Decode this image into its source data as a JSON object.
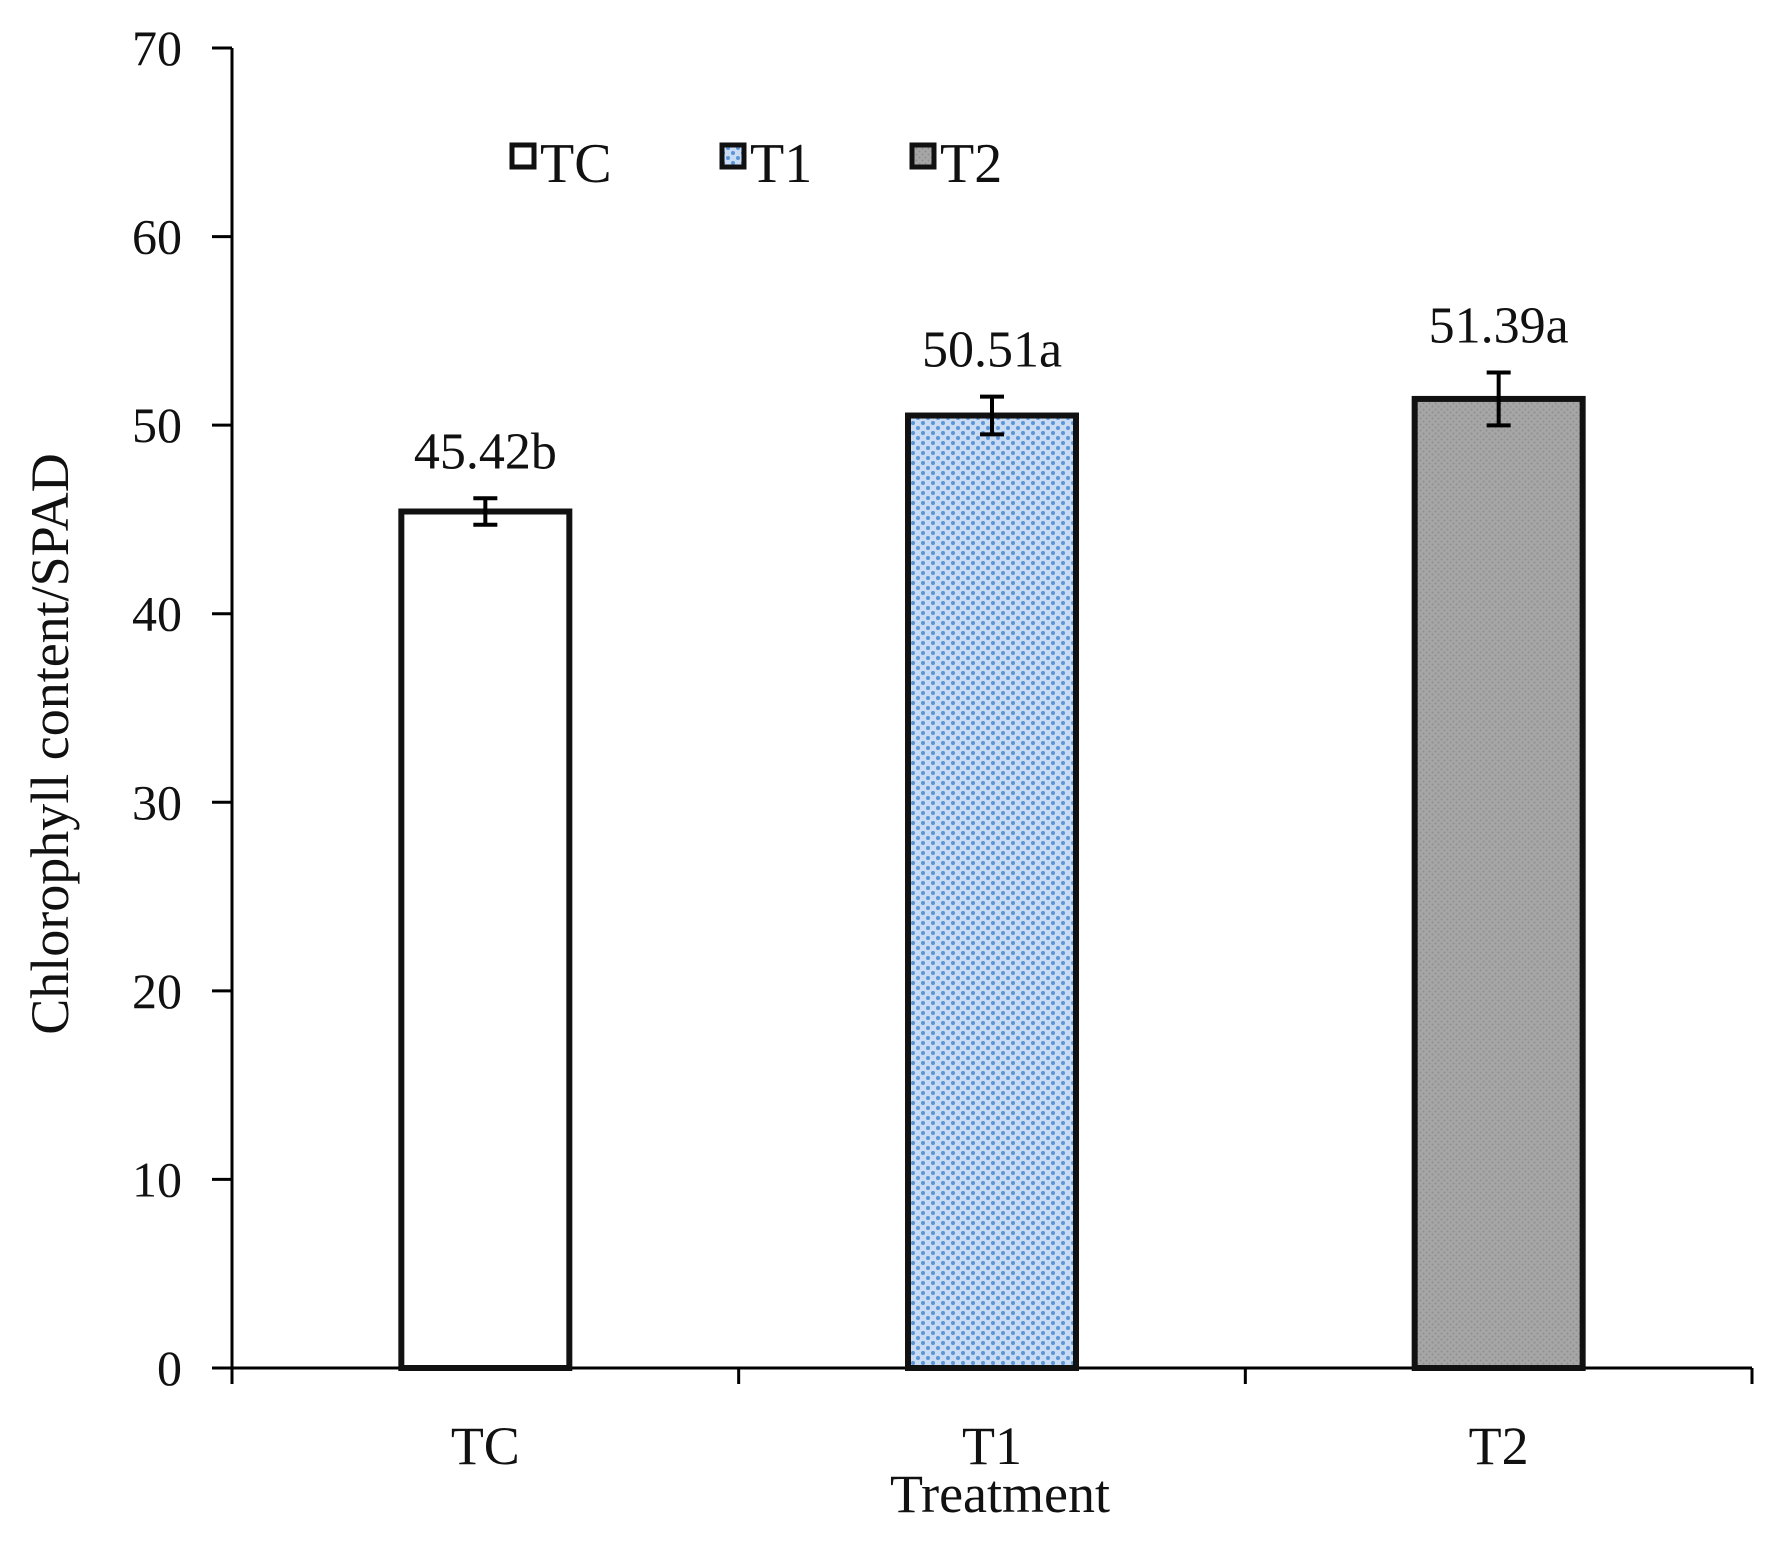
{
  "chart_data": {
    "type": "bar",
    "title": "",
    "xlabel": "Treatment",
    "ylabel": "Chlorophyll content/SPAD",
    "ylim": [
      0,
      70
    ],
    "yticks": [
      0,
      10,
      20,
      30,
      40,
      50,
      60,
      70
    ],
    "ytick_labels": [
      "0",
      "10",
      "20",
      "30",
      "40",
      "50",
      "60",
      "70"
    ],
    "categories": [
      "TC",
      "T1",
      "T2"
    ],
    "values": [
      45.42,
      50.51,
      51.39
    ],
    "errors": [
      0.7,
      1.0,
      1.4
    ],
    "data_labels": [
      "45.42b",
      "50.51a",
      "51.39a"
    ],
    "grid": false,
    "legend": {
      "position": "top",
      "entries": [
        {
          "label": "TC",
          "fill": "white"
        },
        {
          "label": "T1",
          "fill": "dotted-blue"
        },
        {
          "label": "T2",
          "fill": "gray"
        }
      ]
    },
    "colors": {
      "axis": "#000000",
      "bar_outline": "#111111",
      "tc_fill": "#ffffff",
      "t1_fill": "#c9dcf3",
      "t1_dot": "#5b95d8",
      "t2_fill": "#a6a6a6",
      "t2_texture": "#8f8f8f"
    }
  }
}
